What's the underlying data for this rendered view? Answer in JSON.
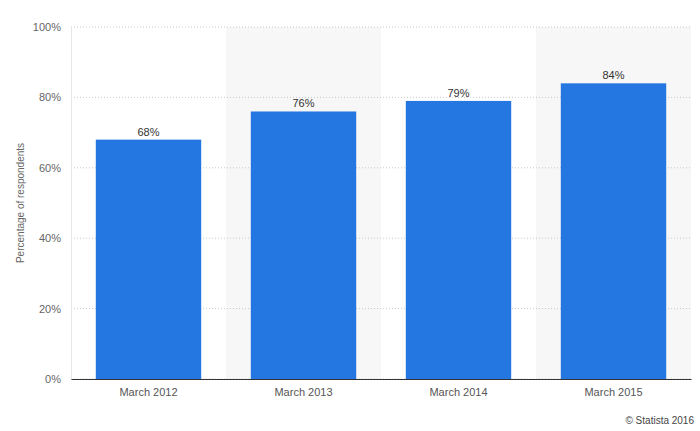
{
  "chart_data": {
    "type": "bar",
    "y_label": "Percentage of respondents",
    "source": "© Statista 2016",
    "categories": [
      "March 2012",
      "March 2013",
      "March 2014",
      "March 2015"
    ],
    "values": [
      68,
      76,
      79,
      84
    ],
    "value_labels": [
      "68%",
      "76%",
      "79%",
      "84%"
    ],
    "data_labels": true,
    "color": "#2477e0",
    "ylim": [
      0,
      100
    ],
    "yticks": [
      {
        "value": 0,
        "label": "0%"
      },
      {
        "value": 20,
        "label": "20%"
      },
      {
        "value": 40,
        "label": "40%"
      },
      {
        "value": 60,
        "label": "60%"
      },
      {
        "value": 80,
        "label": "80%"
      },
      {
        "value": 100,
        "label": "100%"
      }
    ],
    "grid": true
  }
}
